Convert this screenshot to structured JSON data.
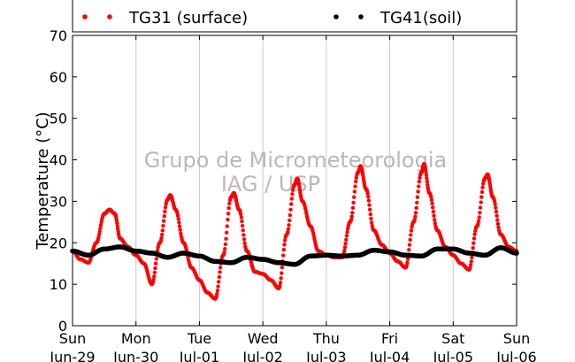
{
  "chart_data": {
    "type": "scatter",
    "ylabel": "Temperature (°C)",
    "ylim": [
      0,
      70
    ],
    "yticks": [
      0,
      10,
      20,
      30,
      40,
      50,
      60,
      70
    ],
    "xlim": [
      "2014-06-29 00:00",
      "2014-07-06 00:00"
    ],
    "xticks": [
      {
        "day": "Sun",
        "date": "Jun-29"
      },
      {
        "day": "Mon",
        "date": "Jun-30"
      },
      {
        "day": "Tue",
        "date": "Jul-01"
      },
      {
        "day": "Wed",
        "date": "Jul-02"
      },
      {
        "day": "Thu",
        "date": "Jul-03"
      },
      {
        "day": "Fri",
        "date": "Jul-04"
      },
      {
        "day": "Sat",
        "date": "Jul-05"
      },
      {
        "day": "Sun",
        "date": "Jul-06"
      }
    ],
    "grid": "vertical",
    "legend": "top",
    "watermark": [
      "Grupo de Micrometeorologia",
      "IAG / USP"
    ],
    "series": [
      {
        "name": "TG31 (surface)",
        "color": "#ff0000",
        "points": [
          [
            "2014-06-29 00:00",
            18.0
          ],
          [
            "2014-06-29 03:00",
            16.0
          ],
          [
            "2014-06-29 06:00",
            15.2
          ],
          [
            "2014-06-29 09:00",
            20.0
          ],
          [
            "2014-06-29 12:00",
            27.0
          ],
          [
            "2014-06-29 14:00",
            28.0
          ],
          [
            "2014-06-29 16:00",
            27.0
          ],
          [
            "2014-06-29 18:00",
            21.0
          ],
          [
            "2014-06-29 21:00",
            19.0
          ],
          [
            "2014-06-30 00:00",
            17.0
          ],
          [
            "2014-06-30 03:00",
            15.0
          ],
          [
            "2014-06-30 06:00",
            10.0
          ],
          [
            "2014-06-30 09:00",
            20.0
          ],
          [
            "2014-06-30 12:00",
            30.5
          ],
          [
            "2014-06-30 13:00",
            31.5
          ],
          [
            "2014-06-30 15:00",
            28.0
          ],
          [
            "2014-06-30 18:00",
            20.0
          ],
          [
            "2014-06-30 21:00",
            14.0
          ],
          [
            "2014-07-01 00:00",
            11.0
          ],
          [
            "2014-07-01 03:00",
            8.0
          ],
          [
            "2014-07-01 06:00",
            6.5
          ],
          [
            "2014-07-01 09:00",
            17.0
          ],
          [
            "2014-07-01 12:00",
            31.0
          ],
          [
            "2014-07-01 13:00",
            32.0
          ],
          [
            "2014-07-01 15:00",
            28.0
          ],
          [
            "2014-07-01 18:00",
            18.0
          ],
          [
            "2014-07-01 21:00",
            13.0
          ],
          [
            "2014-07-02 00:00",
            12.5
          ],
          [
            "2014-07-02 03:00",
            11.0
          ],
          [
            "2014-07-02 06:00",
            9.0
          ],
          [
            "2014-07-02 09:00",
            22.0
          ],
          [
            "2014-07-02 12:00",
            34.0
          ],
          [
            "2014-07-02 13:00",
            35.5
          ],
          [
            "2014-07-02 15:00",
            30.0
          ],
          [
            "2014-07-02 18:00",
            24.0
          ],
          [
            "2014-07-02 21:00",
            18.0
          ],
          [
            "2014-07-03 00:00",
            17.0
          ],
          [
            "2014-07-03 03:00",
            16.5
          ],
          [
            "2014-07-03 06:00",
            16.5
          ],
          [
            "2014-07-03 09:00",
            25.0
          ],
          [
            "2014-07-03 12:00",
            37.0
          ],
          [
            "2014-07-03 13:00",
            38.5
          ],
          [
            "2014-07-03 15:00",
            33.0
          ],
          [
            "2014-07-03 18:00",
            23.0
          ],
          [
            "2014-07-03 21:00",
            19.5
          ],
          [
            "2014-07-04 00:00",
            17.5
          ],
          [
            "2014-07-04 03:00",
            15.5
          ],
          [
            "2014-07-04 06:00",
            14.0
          ],
          [
            "2014-07-04 09:00",
            25.0
          ],
          [
            "2014-07-04 12:00",
            37.0
          ],
          [
            "2014-07-04 13:00",
            39.0
          ],
          [
            "2014-07-04 15:00",
            32.0
          ],
          [
            "2014-07-04 18:00",
            23.0
          ],
          [
            "2014-07-04 21:00",
            19.0
          ],
          [
            "2014-07-05 00:00",
            17.0
          ],
          [
            "2014-07-05 03:00",
            15.0
          ],
          [
            "2014-07-05 06:00",
            13.5
          ],
          [
            "2014-07-05 09:00",
            24.0
          ],
          [
            "2014-07-05 12:00",
            35.5
          ],
          [
            "2014-07-05 13:00",
            36.5
          ],
          [
            "2014-07-05 15:00",
            31.0
          ],
          [
            "2014-07-05 18:00",
            22.0
          ],
          [
            "2014-07-05 21:00",
            19.0
          ],
          [
            "2014-07-06 00:00",
            18.0
          ]
        ]
      },
      {
        "name": "TG41(soil)",
        "color": "#000000",
        "points": [
          [
            "2014-06-29 00:00",
            18.0
          ],
          [
            "2014-06-29 06:00",
            17.0
          ],
          [
            "2014-06-29 12:00",
            18.5
          ],
          [
            "2014-06-29 18:00",
            19.0
          ],
          [
            "2014-06-30 00:00",
            18.0
          ],
          [
            "2014-06-30 06:00",
            17.5
          ],
          [
            "2014-06-30 12:00",
            16.5
          ],
          [
            "2014-06-30 18:00",
            17.5
          ],
          [
            "2014-07-01 00:00",
            16.8
          ],
          [
            "2014-07-01 06:00",
            15.5
          ],
          [
            "2014-07-01 12:00",
            15.2
          ],
          [
            "2014-07-01 18:00",
            16.5
          ],
          [
            "2014-07-02 00:00",
            16.0
          ],
          [
            "2014-07-02 06:00",
            15.2
          ],
          [
            "2014-07-02 12:00",
            14.8
          ],
          [
            "2014-07-02 18:00",
            16.8
          ],
          [
            "2014-07-03 00:00",
            17.0
          ],
          [
            "2014-07-03 06:00",
            16.8
          ],
          [
            "2014-07-03 12:00",
            17.0
          ],
          [
            "2014-07-03 18:00",
            18.2
          ],
          [
            "2014-07-04 00:00",
            17.8
          ],
          [
            "2014-07-04 06:00",
            17.0
          ],
          [
            "2014-07-04 12:00",
            16.8
          ],
          [
            "2014-07-04 18:00",
            18.5
          ],
          [
            "2014-07-05 00:00",
            18.5
          ],
          [
            "2014-07-05 06:00",
            17.5
          ],
          [
            "2014-07-05 12:00",
            17.0
          ],
          [
            "2014-07-05 18:00",
            18.8
          ],
          [
            "2014-07-06 00:00",
            17.5
          ]
        ]
      }
    ]
  }
}
